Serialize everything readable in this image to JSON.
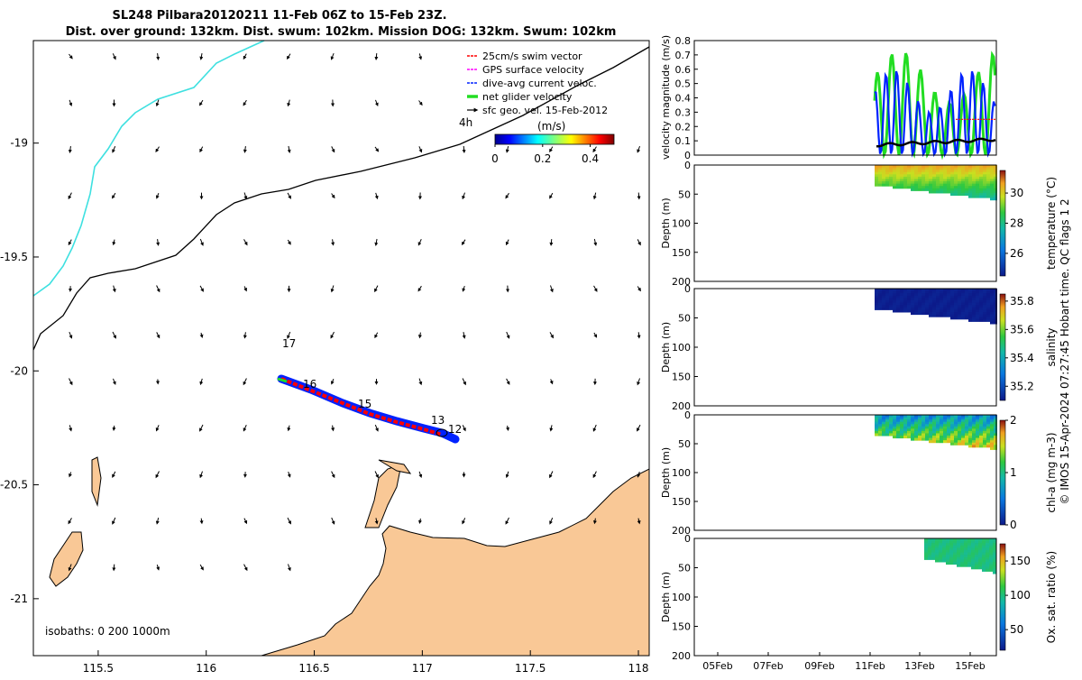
{
  "title": {
    "line1": "SL248 Pilbara20120211 11-Feb 06Z to 15-Feb 23Z.",
    "line2": "Dist. over ground: 132km. Dist. swum: 102km. Mission DOG: 132km. Swum: 102km"
  },
  "side_note": "© IMOS 15-Apr-2024 07:27:45 Hobart time. QC flags 1  2",
  "colors": {
    "land": "#f9c896",
    "isobath_shallow": "#3ee0e0",
    "isobath_deep": "#000000",
    "swim_vector": "#ff0000",
    "gps_surface": "#ff00ff",
    "dive_avg": "#0022ff",
    "net_glider": "#22dd22",
    "sfc_geo": "#000000"
  },
  "chart_data": [
    {
      "type": "map",
      "name": "glider-track-map",
      "xlim": [
        115.2,
        118.05
      ],
      "ylim": [
        -21.25,
        -18.55
      ],
      "x_ticks": [
        "115.5",
        "116",
        "116.5",
        "117",
        "117.5",
        "118"
      ],
      "x_tick_values": [
        115.5,
        116,
        116.5,
        117,
        117.5,
        118
      ],
      "y_ticks": [
        "-19",
        "-19.5",
        "-20",
        "-20.5",
        "-21"
      ],
      "y_tick_values": [
        -19,
        -19.5,
        -20,
        -20.5,
        -21
      ],
      "legend": [
        {
          "label": "25cm/s swim vector",
          "color_key": "swim_vector",
          "style": "dashed"
        },
        {
          "label": "GPS surface velocity",
          "color_key": "gps_surface",
          "style": "dashed"
        },
        {
          "label": "dive-avg current veloc.",
          "color_key": "dive_avg",
          "style": "dashed"
        },
        {
          "label": "net glider velocity",
          "color_key": "net_glider",
          "style": "thick"
        },
        {
          "label": "sfc geo. vel. 15-Feb-2012",
          "color_key": "sfc_geo",
          "style": "arrow"
        }
      ],
      "colorbar": {
        "label": "(m/s)",
        "ticks": [
          "0",
          "0.2",
          "0.4"
        ],
        "tick_values": [
          0,
          0.2,
          0.4
        ],
        "range": [
          0,
          0.5
        ]
      },
      "time_labels": [
        "4h",
        "17",
        "16",
        "15",
        "13",
        "12"
      ],
      "isobaths_text": "isobaths: 0   200  1000m",
      "track": [
        [
          116.35,
          -20.02
        ],
        [
          116.45,
          -20.06
        ],
        [
          116.55,
          -20.1
        ],
        [
          116.65,
          -20.14
        ],
        [
          116.75,
          -20.18
        ],
        [
          116.85,
          -20.2
        ],
        [
          116.95,
          -20.22
        ],
        [
          117.05,
          -20.25
        ],
        [
          117.12,
          -20.27
        ]
      ]
    },
    {
      "type": "line",
      "name": "velocity-magnitude",
      "ylabel": "velocity magnitude (m/s)",
      "ylim": [
        0,
        0.8
      ],
      "y_ticks": [
        "0",
        "0.1",
        "0.2",
        "0.3",
        "0.4",
        "0.5",
        "0.6",
        "0.7",
        "0.8"
      ],
      "y_tick_values": [
        0,
        0.1,
        0.2,
        0.3,
        0.4,
        0.5,
        0.6,
        0.7,
        0.8
      ],
      "x": [
        "2012-02-11T06:00",
        "2012-02-15T23:00"
      ],
      "series": [
        {
          "color_key": "net_glider",
          "values_range": [
            0.0,
            0.73
          ]
        },
        {
          "color_key": "dive_avg",
          "values_range": [
            0.0,
            0.6
          ]
        },
        {
          "color_key": "swim_vector",
          "values_range": [
            0.25,
            0.25
          ]
        },
        {
          "color_key": "sfc_geo",
          "values_range": [
            0.07,
            0.11
          ]
        }
      ]
    },
    {
      "type": "heatmap",
      "name": "temperature-section",
      "ylabel": "Depth (m)",
      "ylim": [
        0,
        200
      ],
      "y_ticks": [
        "0",
        "50",
        "100",
        "150",
        "200"
      ],
      "y_tick_values": [
        0,
        50,
        100,
        150,
        200
      ],
      "colorbar_label": "temperature (°C)",
      "colorbar_ticks": [
        "26",
        "28",
        "30"
      ],
      "colorbar_tick_values": [
        26,
        28,
        30
      ],
      "colorbar_range": [
        24.5,
        31.5
      ],
      "data_x": [
        "11-Feb",
        "16-Feb"
      ],
      "values_range": [
        27.5,
        30.5
      ]
    },
    {
      "type": "heatmap",
      "name": "salinity-section",
      "ylabel": "Depth (m)",
      "ylim": [
        0,
        200
      ],
      "y_ticks": [
        "0",
        "50",
        "100",
        "150",
        "200"
      ],
      "y_tick_values": [
        0,
        50,
        100,
        150,
        200
      ],
      "colorbar_label": "salinity",
      "colorbar_ticks": [
        "35.2",
        "35.4",
        "35.6",
        "35.8"
      ],
      "colorbar_tick_values": [
        35.2,
        35.4,
        35.6,
        35.8
      ],
      "colorbar_range": [
        35.1,
        35.85
      ],
      "data_x": [
        "11-Feb",
        "16-Feb"
      ],
      "values_range": [
        35.1,
        35.12
      ]
    },
    {
      "type": "heatmap",
      "name": "chl-a-section",
      "ylabel": "Depth (m)",
      "ylim": [
        0,
        200
      ],
      "y_ticks": [
        "0",
        "50",
        "100",
        "150",
        "200"
      ],
      "y_tick_values": [
        0,
        50,
        100,
        150,
        200
      ],
      "colorbar_label": "chl-a (mg m-3)",
      "colorbar_ticks": [
        "0",
        "1",
        "2"
      ],
      "colorbar_tick_values": [
        0,
        1,
        2
      ],
      "colorbar_range": [
        0,
        2
      ],
      "data_x": [
        "11-Feb",
        "16-Feb"
      ],
      "values_range": [
        0.4,
        1.9
      ]
    },
    {
      "type": "heatmap",
      "name": "oxygen-section",
      "ylabel": "Depth (m)",
      "ylim": [
        0,
        200
      ],
      "y_ticks": [
        "0",
        "50",
        "100",
        "150",
        "200"
      ],
      "y_tick_values": [
        0,
        50,
        100,
        150,
        200
      ],
      "colorbar_label": "Ox. sat. ratio (%)",
      "colorbar_ticks": [
        "50",
        "100",
        "150"
      ],
      "colorbar_tick_values": [
        50,
        100,
        150
      ],
      "colorbar_range": [
        20,
        175
      ],
      "data_x": [
        "13-Feb",
        "16-Feb"
      ],
      "values_range": [
        95,
        105
      ],
      "x_ticks": [
        "05Feb",
        "07Feb",
        "09Feb",
        "11Feb",
        "13Feb",
        "15Feb"
      ]
    }
  ]
}
